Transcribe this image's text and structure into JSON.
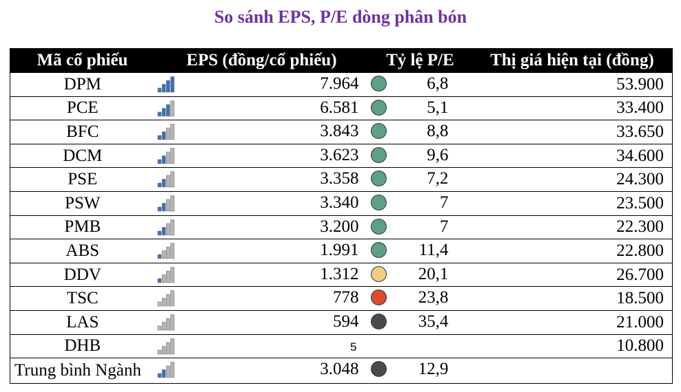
{
  "title": "So sánh EPS, P/E dòng phân bón",
  "colors": {
    "title": "#7030a0",
    "bar_filled": "#3a6fb8",
    "bar_empty": "#b5b5b5",
    "pe_low": "#5fa084",
    "pe_mid": "#f0cd84",
    "pe_high": "#d94d2b",
    "pe_very_high": "#4a4a4a"
  },
  "chart_data": {
    "type": "table",
    "columns": [
      "Mã cổ phiếu",
      "EPS (đồng/cổ phiếu)",
      "Tỷ lệ P/E",
      "Thị giá hiện tại (đồng)"
    ],
    "rows": [
      {
        "code": "DPM",
        "eps": "7.964",
        "eps_value": 7964,
        "pe": "6,8",
        "pe_color": "#5fa084",
        "price": "53.900"
      },
      {
        "code": "PCE",
        "eps": "6.581",
        "eps_value": 6581,
        "pe": "5,1",
        "pe_color": "#5fa084",
        "price": "33.400"
      },
      {
        "code": "BFC",
        "eps": "3.843",
        "eps_value": 3843,
        "pe": "8,8",
        "pe_color": "#5fa084",
        "price": "33.650"
      },
      {
        "code": "DCM",
        "eps": "3.623",
        "eps_value": 3623,
        "pe": "9,6",
        "pe_color": "#5fa084",
        "price": "34.600"
      },
      {
        "code": "PSE",
        "eps": "3.358",
        "eps_value": 3358,
        "pe": "7,2",
        "pe_color": "#5fa084",
        "price": "24.300"
      },
      {
        "code": "PSW",
        "eps": "3.340",
        "eps_value": 3340,
        "pe": "7",
        "pe_color": "#5fa084",
        "price": "23.500"
      },
      {
        "code": "PMB",
        "eps": "3.200",
        "eps_value": 3200,
        "pe": "7",
        "pe_color": "#5fa084",
        "price": "22.300"
      },
      {
        "code": "ABS",
        "eps": "1.991",
        "eps_value": 1991,
        "pe": "11,4",
        "pe_color": "#5fa084",
        "price": "22.800"
      },
      {
        "code": "DDV",
        "eps": "1.312",
        "eps_value": 1312,
        "pe": "20,1",
        "pe_color": "#f0cd84",
        "price": "26.700"
      },
      {
        "code": "TSC",
        "eps": "778",
        "eps_value": 778,
        "pe": "23,8",
        "pe_color": "#d94d2b",
        "price": "18.500"
      },
      {
        "code": "LAS",
        "eps": "594",
        "eps_value": 594,
        "pe": "35,4",
        "pe_color": "#4a4a4a",
        "price": "21.000"
      },
      {
        "code": "DHB",
        "eps": "5",
        "eps_value": 5,
        "pe": "",
        "pe_color": "",
        "price": "10.800"
      },
      {
        "code": "Trung bình Ngành",
        "eps": "3.048",
        "eps_value": 3048,
        "pe": "12,9",
        "pe_color": "#4a4a4a",
        "price": ""
      }
    ]
  }
}
